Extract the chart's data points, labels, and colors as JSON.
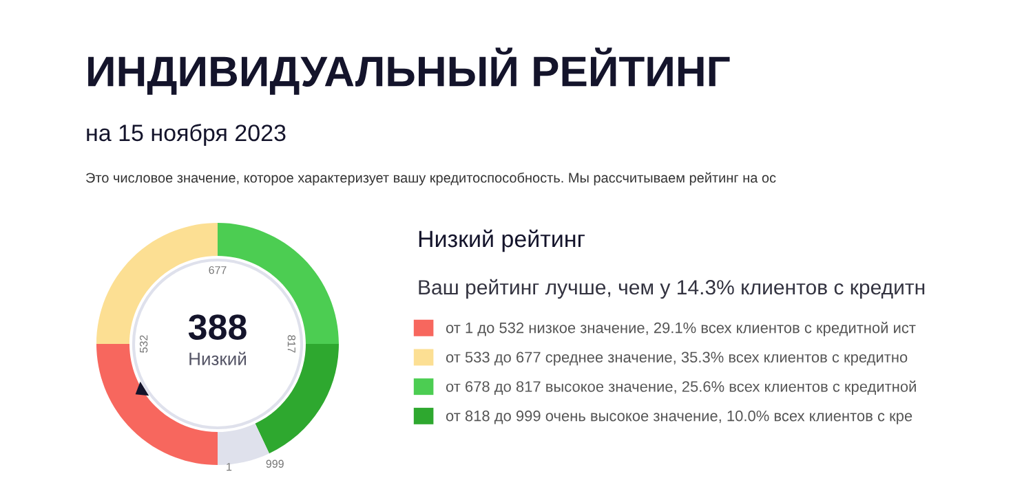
{
  "chart_data": {
    "type": "donut",
    "title": "ИНДИВИДУАЛЬНЫЙ РЕЙТИНГ",
    "subtitle": "на 15 ноября 2023",
    "categories": [
      "от 1 до 532 низкое значение, 29.1% всех клиентов с кредитной ист",
      "от 533 до 677 среднее значение, 35.3% всех клиентов с кредитно",
      "от 678 до 817 высокое значение, 25.6% всех клиентов с кредитной",
      "от 818 до 999 очень высокое значение, 10.0% всех клиентов с кре",
      null
    ],
    "values": [
      25,
      25,
      25,
      18,
      7
    ],
    "colors": [
      "#f7675e",
      "#fcdf93",
      "#4ccd52",
      "#2ea82f",
      "#dfe1ec"
    ],
    "legend": "right",
    "annotations": [
      "1",
      "532",
      "677",
      "817",
      "999",
      "388",
      "Низкий",
      "Это числовое значение, которое характеризует вашу кредитоспособность. Мы рассчитываем рейтинг на ос",
      "Низкий рейтинг",
      "Ваш рейтинг лучше, чем у 14.3% клиентов с кредитн"
    ]
  }
}
